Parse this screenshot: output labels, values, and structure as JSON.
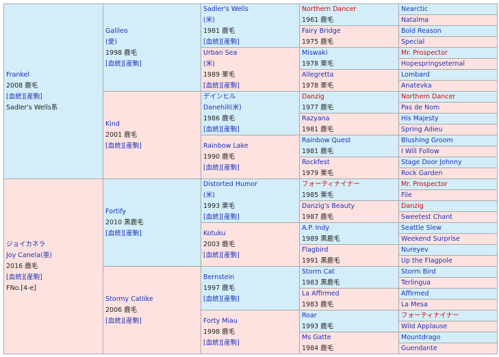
{
  "generations": [
    [
      {
        "name": "Frankel",
        "born": "2008 鹿毛",
        "links": "[血統][産駒]",
        "sire_line": "Sadler's Wells系"
      },
      {
        "name": "ジョイカネラ",
        "alt_name": "Joy Canela(亜)",
        "born": "2016 鹿毛",
        "links": "[血統][産駒]",
        "family": "FNo.[4-e]"
      }
    ],
    [
      {
        "name": "Galileo",
        "origin": "(愛)",
        "born": "1998 鹿毛",
        "links": "[血統][産駒]"
      },
      {
        "name": "Kind",
        "born": "2001 鹿毛",
        "links": "[血統][産駒]"
      },
      {
        "name": "Fortify",
        "born": "2010 黒鹿毛",
        "links": "[血統][産駒]"
      },
      {
        "name": "Stormy Catlike",
        "born": "2006 鹿毛",
        "links": "[血統][産駒]"
      }
    ],
    [
      {
        "name": "Sadler's Wells",
        "origin": "(米)",
        "born": "1981 鹿毛",
        "links": "[血統][産駒]"
      },
      {
        "name": "Urban Sea",
        "origin": "(米)",
        "born": "1989 栗毛",
        "links": "[血統][産駒]"
      },
      {
        "name": "デインヒル",
        "alt_name": "Danehill(米)",
        "born": "1986 鹿毛",
        "links": "[血統][産駒]"
      },
      {
        "name": "Rainbow Lake",
        "born": "1990 鹿毛",
        "links": "[血統][産駒]"
      },
      {
        "name": "Distorted Humor",
        "origin": "(米)",
        "born": "1993 栗毛",
        "links": "[血統][産駒]"
      },
      {
        "name": "Kotuku",
        "born": "2003 鹿毛",
        "links": "[血統][産駒]"
      },
      {
        "name": "Bernstein",
        "born": "1997 鹿毛",
        "links": "[血統][産駒]"
      },
      {
        "name": "Forty Miau",
        "born": "1998 鹿毛",
        "links": "[血統][産駒]"
      }
    ],
    [
      {
        "name": "Northern Dancer",
        "born": "1961 鹿毛",
        "highlight": true
      },
      {
        "name": "Fairy Bridge",
        "born": "1975 鹿毛"
      },
      {
        "name": "Miswaki",
        "born": "1978 栗毛"
      },
      {
        "name": "Allegretta",
        "born": "1978 栗毛"
      },
      {
        "name": "Danzig",
        "born": "1977 鹿毛",
        "highlight": true
      },
      {
        "name": "Razyana",
        "born": "1981 鹿毛"
      },
      {
        "name": "Rainbow Quest",
        "born": "1981 鹿毛"
      },
      {
        "name": "Rockfest",
        "born": "1979 栗毛"
      },
      {
        "name": "フォーティナイナー",
        "born": "1985 栗毛",
        "highlight": true
      },
      {
        "name": "Danzig's Beauty",
        "born": "1987 鹿毛"
      },
      {
        "name": "A.P. Indy",
        "born": "1989 黒鹿毛"
      },
      {
        "name": "Flagbird",
        "born": "1991 黒鹿毛"
      },
      {
        "name": "Storm Cat",
        "born": "1983 黒鹿毛"
      },
      {
        "name": "La Affirmed",
        "born": "1983 鹿毛"
      },
      {
        "name": "Roar",
        "born": "1993 鹿毛"
      },
      {
        "name": "Ms Gatte",
        "born": "1984 鹿毛"
      }
    ],
    [
      {
        "name": "Nearctic"
      },
      {
        "name": "Natalma"
      },
      {
        "name": "Bold Reason"
      },
      {
        "name": "Special"
      },
      {
        "name": "Mr. Prospector",
        "highlight": true
      },
      {
        "name": "Hopespringseternal"
      },
      {
        "name": "Lombard"
      },
      {
        "name": "Anatevka"
      },
      {
        "name": "Northern Dancer",
        "highlight": true
      },
      {
        "name": "Pas de Nom"
      },
      {
        "name": "His Majesty"
      },
      {
        "name": "Spring Adieu"
      },
      {
        "name": "Blushing Groom"
      },
      {
        "name": "I Will Follow"
      },
      {
        "name": "Stage Door Johnny"
      },
      {
        "name": "Rock Garden"
      },
      {
        "name": "Mr. Prospector",
        "highlight": true
      },
      {
        "name": "File"
      },
      {
        "name": "Danzig",
        "highlight": true
      },
      {
        "name": "Sweetest Chant"
      },
      {
        "name": "Seattle Slew"
      },
      {
        "name": "Weekend Surprise"
      },
      {
        "name": "Nureyev"
      },
      {
        "name": "Up the Flagpole"
      },
      {
        "name": "Storm Bird"
      },
      {
        "name": "Terlingua"
      },
      {
        "name": "Affirmed"
      },
      {
        "name": "La Mesa"
      },
      {
        "name": "フォーティナイナー",
        "highlight": true
      },
      {
        "name": "Wild Applause"
      },
      {
        "name": "Mountdrago"
      },
      {
        "name": "Guendante"
      }
    ]
  ]
}
